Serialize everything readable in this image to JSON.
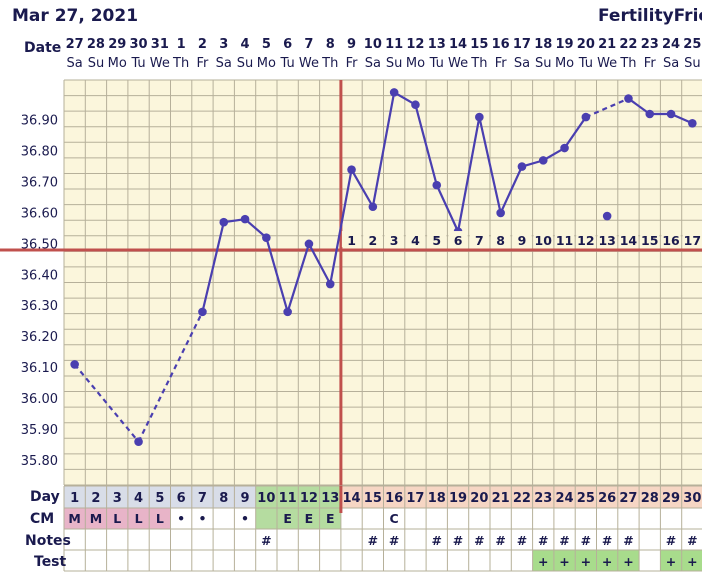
{
  "header": {
    "date": "Mar 27, 2021",
    "brand": "FertilityFriend"
  },
  "labels": {
    "date": "Date",
    "day": "Day",
    "cm": "CM",
    "notes": "Notes",
    "test": "Test"
  },
  "dates": [
    "27",
    "28",
    "29",
    "30",
    "31",
    "1",
    "2",
    "3",
    "4",
    "5",
    "6",
    "7",
    "8",
    "9",
    "10",
    "11",
    "12",
    "13",
    "14",
    "15",
    "16",
    "17",
    "18",
    "19",
    "20",
    "21",
    "22",
    "23",
    "24",
    "25"
  ],
  "weekdays": [
    "Sa",
    "Su",
    "Mo",
    "Tu",
    "We",
    "Th",
    "Fr",
    "Sa",
    "Su",
    "Mo",
    "Tu",
    "We",
    "Th",
    "Fr",
    "Sa",
    "Su",
    "Mo",
    "Tu",
    "We",
    "Th",
    "Fr",
    "Sa",
    "Su",
    "Mo",
    "Tu",
    "We",
    "Th",
    "Fr",
    "Sa",
    "Su"
  ],
  "cycle_days": [
    "1",
    "2",
    "3",
    "4",
    "5",
    "6",
    "7",
    "8",
    "9",
    "10",
    "11",
    "12",
    "13",
    "14",
    "15",
    "16",
    "17",
    "18",
    "19",
    "20",
    "21",
    "22",
    "23",
    "24",
    "25",
    "26",
    "27",
    "28",
    "29",
    "30"
  ],
  "cm": [
    "M",
    "M",
    "L",
    "L",
    "L",
    "•",
    "•",
    "",
    "•",
    "",
    "E",
    "E",
    "E",
    "",
    "",
    "C",
    "",
    "",
    "",
    "",
    "",
    "",
    "",
    "",
    "",
    "",
    "",
    "",
    "",
    ""
  ],
  "notes": [
    "",
    "",
    "",
    "",
    "",
    "",
    "",
    "",
    "",
    "#",
    "",
    "",
    "",
    "",
    "#",
    "#",
    "",
    "#",
    "#",
    "#",
    "#",
    "#",
    "#",
    "#",
    "#",
    "#",
    "#",
    "",
    "#",
    "#"
  ],
  "tests": [
    "",
    "",
    "",
    "",
    "",
    "",
    "",
    "",
    "",
    "",
    "",
    "",
    "",
    "",
    "",
    "",
    "",
    "",
    "",
    "",
    "",
    "",
    "+",
    "+",
    "+",
    "+",
    "+",
    "",
    "+",
    "+"
  ],
  "luteal_days": [
    "1",
    "2",
    "3",
    "4",
    "5",
    "6",
    "7",
    "8",
    "9",
    "10",
    "11",
    "12",
    "13",
    "14",
    "15",
    "16",
    "17"
  ],
  "colors": {
    "background": "#fbf6dc",
    "grid": "#b6b09a",
    "line": "#4a3fb0",
    "coverline": "#c0504d",
    "menses": "#e8b4c8",
    "fertile": "#b5dca0",
    "luteal_row": "#f6d6c4",
    "test_positive": "#a8dc8c",
    "text": "#1a1a4e"
  },
  "chart_data": {
    "type": "line",
    "title": "",
    "xlabel": "Date",
    "ylabel": "",
    "y_ticks": [
      35.8,
      35.9,
      36.0,
      36.1,
      36.2,
      36.3,
      36.4,
      36.5,
      36.6,
      36.7,
      36.8,
      36.9
    ],
    "ylim": [
      35.72,
      37.03
    ],
    "coverline": 36.48,
    "ovulation_day": 13,
    "temps": [
      36.11,
      null,
      null,
      35.86,
      null,
      null,
      36.28,
      36.57,
      36.58,
      36.52,
      36.28,
      36.5,
      36.37,
      36.74,
      36.62,
      36.99,
      36.95,
      36.69,
      36.54,
      36.91,
      36.6,
      36.75,
      36.77,
      36.81,
      36.91,
      36.59,
      36.97,
      36.92,
      36.92,
      36.89
    ],
    "discarded_days": [
      26
    ],
    "connected_days": [
      [
        1,
        4,
        "dashed"
      ],
      [
        4,
        7,
        "dashed"
      ],
      [
        7,
        13,
        "solid"
      ],
      [
        13,
        25,
        "solid"
      ],
      [
        25,
        27,
        "dashed"
      ],
      [
        27,
        30,
        "solid"
      ]
    ]
  }
}
